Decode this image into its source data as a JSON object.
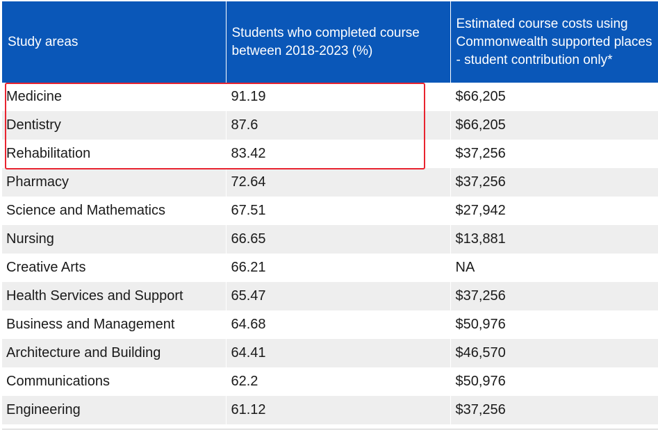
{
  "table": {
    "headers": [
      "Study areas",
      "Students who completed course between 2018-2023 (%)",
      "Estimated course costs using Commonwealth supported places - student contribution only*"
    ],
    "rows": [
      {
        "area": "Medicine",
        "completed": "91.19",
        "cost": "$66,205"
      },
      {
        "area": "Dentistry",
        "completed": "87.6",
        "cost": "$66,205"
      },
      {
        "area": "Rehabilitation",
        "completed": "83.42",
        "cost": "$37,256"
      },
      {
        "area": "Pharmacy",
        "completed": "72.64",
        "cost": "$37,256"
      },
      {
        "area": "Science and Mathematics",
        "completed": "67.51",
        "cost": "$27,942"
      },
      {
        "area": "Nursing",
        "completed": "66.65",
        "cost": "$13,881"
      },
      {
        "area": "Creative Arts",
        "completed": "66.21",
        "cost": "NA"
      },
      {
        "area": "Health Services and Support",
        "completed": "65.47",
        "cost": "$37,256"
      },
      {
        "area": "Business and Management",
        "completed": "64.68",
        "cost": "$50,976"
      },
      {
        "area": "Architecture and Building",
        "completed": "64.41",
        "cost": "$46,570"
      },
      {
        "area": "Communications",
        "completed": "62.2",
        "cost": "$50,976"
      },
      {
        "area": "Engineering",
        "completed": "61.12",
        "cost": "$37,256"
      }
    ]
  },
  "colors": {
    "header_bg": "#0a57b8",
    "header_text": "#ffffff",
    "row_alt_bg": "#eeeeee",
    "highlight_border": "#e8232f"
  }
}
